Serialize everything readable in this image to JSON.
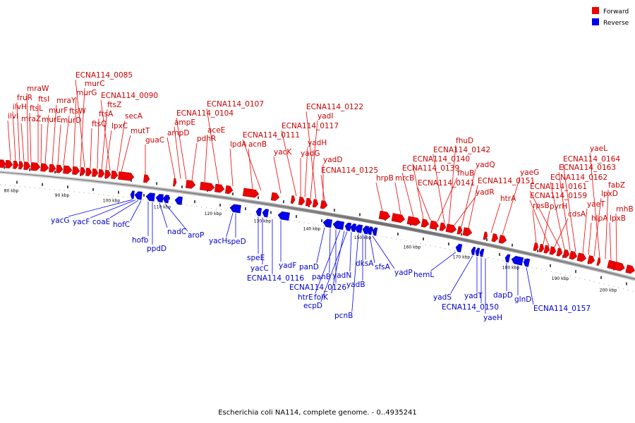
{
  "legend": [
    {
      "label": "Forward",
      "color": "#ee0000"
    },
    {
      "label": "Reverse",
      "color": "#0000ee"
    }
  ],
  "caption": "Escherichia coli NA114, complete genome. - 0..4935241",
  "ticks": [
    "80 kbp",
    "90 kbp",
    "100 kbp",
    "110 kbp",
    "120 kbp",
    "130 kbp",
    "140 kbp",
    "150 kbp",
    "160 kbp",
    "170 kbp",
    "180 kbp",
    "190 kbp",
    "200 kbp"
  ],
  "forward_genes": [
    "ilvI",
    "ilvH",
    "fruR",
    "mraZ",
    "mraW",
    "ftsL",
    "ftsI",
    "murE",
    "murF",
    "mraY",
    "murD",
    "ftsW",
    "murG",
    "murC",
    "ECNA114_0085",
    "ftsQ",
    "ftsA",
    "ftsZ",
    "lpxC",
    "ECNA114_0090",
    "secA",
    "mutT",
    "guaC",
    "ampD",
    "ampE",
    "ECNA114_0104",
    "pdhR",
    "aceE",
    "ECNA114_0107",
    "lpdA",
    "acnB",
    "ECNA114_0111",
    "yacK",
    "ECNA114_0117",
    "yadG",
    "yadH",
    "yadI",
    "ECNA114_0122",
    "yadD",
    "ECNA114_0125",
    "hrpB",
    "mrcB",
    "ECNA114_0139",
    "ECNA114_0140",
    "ECNA114_0141",
    "fhuB",
    "ECNA114_0142",
    "fhuD",
    "yadR",
    "yadQ",
    "ECNA114_0151",
    "htrA",
    "yaeG",
    "rpsB",
    "pyrH",
    "ECNA114_0159",
    "cdsA",
    "ECNA114_0161",
    "ECNA114_0162",
    "ECNA114_0163",
    "ECNA114_0164",
    "yaeT",
    "hlpA",
    "lpxD",
    "yaeL",
    "fabZ",
    "lpxB",
    "rnhB"
  ],
  "reverse_genes": [
    "yacG",
    "yacF",
    "coaE",
    "hofC",
    "hofb",
    "ppdD",
    "nadC",
    "aroP",
    "yacH",
    "speD",
    "speE",
    "yacC",
    "ECNA114_0116",
    "yadF",
    "panD",
    "panB",
    "ECNA114_0126",
    "htrE",
    "folK",
    "ecpD",
    "yadN",
    "pcnB",
    "yadB",
    "dksA",
    "sfsA",
    "yadP",
    "hemL",
    "yadS",
    "yadT",
    "ECNA114_0150",
    "yaeH",
    "dapD",
    "glnD",
    "ECNA114_0157"
  ]
}
